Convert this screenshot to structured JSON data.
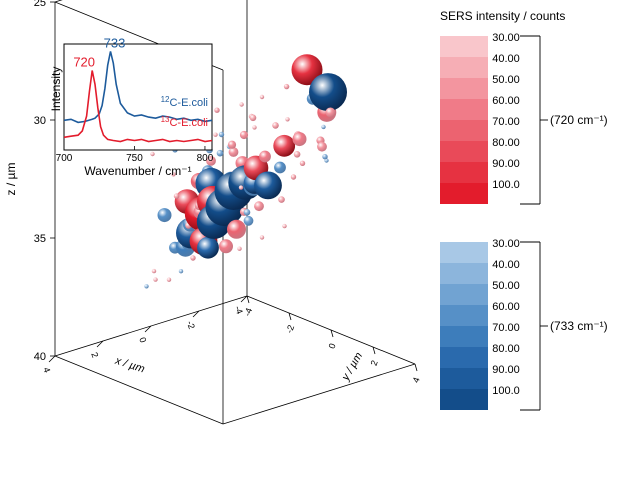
{
  "chart_data": {
    "type": "scatter",
    "subtype": "3d-bubble",
    "axes": {
      "x": {
        "label": "x / µm",
        "ticks": [
          "4",
          "2",
          "0",
          "-2",
          "-4"
        ]
      },
      "y": {
        "label": "y / µm",
        "ticks": [
          "-4",
          "-2",
          "0",
          "2",
          "4"
        ]
      },
      "z": {
        "label": "z / µm",
        "ticks": [
          "25",
          "30",
          "35",
          "40"
        ],
        "range": [
          25,
          40
        ]
      }
    },
    "legend": {
      "title": "SERS intensity / counts",
      "groups": [
        {
          "label": "(720 cm⁻¹)",
          "color_scale": "red",
          "levels": [
            "30.00",
            "40.00",
            "50.00",
            "60.00",
            "70.00",
            "80.00",
            "90.00",
            "100.0"
          ],
          "colors": [
            "#f9c6cb",
            "#f6aeb5",
            "#f3959f",
            "#f07b88",
            "#ec6370",
            "#e94a59",
            "#e63241",
            "#e31c2c"
          ]
        },
        {
          "label": "(733 cm⁻¹)",
          "color_scale": "blue",
          "levels": [
            "30.00",
            "40.00",
            "50.00",
            "60.00",
            "70.00",
            "80.00",
            "90.00",
            "100.0"
          ],
          "colors": [
            "#a8c8e6",
            "#8cb5dc",
            "#71a3d2",
            "#5690c7",
            "#3d7dbb",
            "#2a6aad",
            "#1d5b9c",
            "#134d8a"
          ]
        }
      ]
    },
    "inset": {
      "xlabel": "Wavenumber / cm⁻¹",
      "ylabel": "Intensity",
      "xticks": [
        "700",
        "750",
        "800"
      ],
      "xlim": [
        700,
        805
      ],
      "peak_labels": [
        {
          "text": "720",
          "x": 720,
          "color": "#e31c2c"
        },
        {
          "text": "733",
          "x": 733,
          "color": "#1d5b9c"
        }
      ],
      "series": [
        {
          "name": "12C-E.coli",
          "color": "#1d5b9c",
          "x": [
            700,
            705,
            710,
            715,
            720,
            722,
            725,
            727,
            729,
            731,
            733,
            735,
            737,
            740,
            745,
            750,
            755,
            760,
            765,
            770,
            775,
            780,
            785,
            790,
            795,
            800,
            805
          ],
          "y": [
            0.28,
            0.29,
            0.26,
            0.27,
            0.29,
            0.3,
            0.34,
            0.42,
            0.58,
            0.8,
            0.93,
            0.82,
            0.62,
            0.44,
            0.35,
            0.32,
            0.33,
            0.31,
            0.3,
            0.32,
            0.31,
            0.29,
            0.3,
            0.28,
            0.29,
            0.27,
            0.28
          ]
        },
        {
          "name": "13C-E.coli",
          "color": "#e31c2c",
          "x": [
            700,
            705,
            710,
            713,
            716,
            718,
            720,
            722,
            724,
            726,
            728,
            731,
            735,
            740,
            745,
            750,
            755,
            760,
            765,
            770,
            775,
            780,
            785,
            790,
            795,
            800,
            805
          ],
          "y": [
            0.12,
            0.13,
            0.14,
            0.18,
            0.32,
            0.55,
            0.75,
            0.62,
            0.4,
            0.22,
            0.14,
            0.1,
            0.09,
            0.08,
            0.1,
            0.09,
            0.1,
            0.08,
            0.09,
            0.1,
            0.08,
            0.09,
            0.08,
            0.09,
            0.1,
            0.08,
            0.09
          ]
        }
      ],
      "series_labels": [
        {
          "pre": "12",
          "post": "C-E.coli",
          "color": "#1d5b9c"
        },
        {
          "pre": "13",
          "post": "C-E.coli",
          "color": "#e31c2c"
        }
      ]
    },
    "points": [
      {
        "x": 0.5,
        "y": 4.0,
        "z": 26.1,
        "c": "red",
        "i": 90
      },
      {
        "x": -0.2,
        "y": 4.2,
        "z": 27.2,
        "c": "blue",
        "i": 100
      },
      {
        "x": -0.5,
        "y": 3.8,
        "z": 28.3,
        "c": "red",
        "i": 70
      },
      {
        "x": 0.0,
        "y": 3.7,
        "z": 27.6,
        "c": "blue",
        "i": 55
      },
      {
        "x": -1.0,
        "y": 3.4,
        "z": 28.6,
        "c": "red",
        "i": 50
      },
      {
        "x": 1.0,
        "y": 3.6,
        "z": 26.8,
        "c": "red",
        "i": 35
      },
      {
        "x": 1.5,
        "y": 3.0,
        "z": 27.3,
        "c": "red",
        "i": 30
      },
      {
        "x": 2.0,
        "y": 2.6,
        "z": 27.6,
        "c": "red",
        "i": 30
      },
      {
        "x": 2.5,
        "y": 2.0,
        "z": 27.9,
        "c": "red",
        "i": 35
      },
      {
        "x": 3.0,
        "y": 1.5,
        "z": 28.1,
        "c": "red",
        "i": 30
      },
      {
        "x": 1.5,
        "y": 2.5,
        "z": 28.3,
        "c": "red",
        "i": 35
      },
      {
        "x": 1.0,
        "y": 2.0,
        "z": 28.7,
        "c": "red",
        "i": 40
      },
      {
        "x": 0.5,
        "y": 2.5,
        "z": 29.0,
        "c": "red",
        "i": 40
      },
      {
        "x": 0.0,
        "y": 3.0,
        "z": 29.4,
        "c": "red",
        "i": 45
      },
      {
        "x": -0.5,
        "y": 3.5,
        "z": 29.6,
        "c": "red",
        "i": 45
      },
      {
        "x": 0.3,
        "y": 3.3,
        "z": 30.0,
        "c": "red",
        "i": 40
      },
      {
        "x": -0.5,
        "y": 2.5,
        "z": 29.9,
        "c": "red",
        "i": 60
      },
      {
        "x": -0.3,
        "y": 2.0,
        "z": 30.3,
        "c": "red",
        "i": 75
      },
      {
        "x": -1.0,
        "y": 3.0,
        "z": 30.2,
        "c": "red",
        "i": 50
      },
      {
        "x": 0.5,
        "y": 2.0,
        "z": 30.5,
        "c": "red",
        "i": 55
      },
      {
        "x": 1.0,
        "y": 1.5,
        "z": 30.8,
        "c": "red",
        "i": 60
      },
      {
        "x": 1.5,
        "y": 1.0,
        "z": 30.4,
        "c": "blue",
        "i": 40
      },
      {
        "x": 2.0,
        "y": 0.5,
        "z": 30.0,
        "c": "red",
        "i": 30
      },
      {
        "x": 2.5,
        "y": 0.0,
        "z": 30.3,
        "c": "blue",
        "i": 35
      },
      {
        "x": 3.0,
        "y": -0.5,
        "z": 30.5,
        "c": "red",
        "i": 30
      },
      {
        "x": 2.0,
        "y": 1.0,
        "z": 31.0,
        "c": "blue",
        "i": 55
      },
      {
        "x": 1.5,
        "y": 1.5,
        "z": 31.3,
        "c": "blue",
        "i": 60
      },
      {
        "x": 1.0,
        "y": 2.0,
        "z": 31.6,
        "c": "blue",
        "i": 70
      },
      {
        "x": 0.5,
        "y": 1.5,
        "z": 31.8,
        "c": "blue",
        "i": 75
      },
      {
        "x": 0.0,
        "y": 1.0,
        "z": 31.5,
        "c": "red",
        "i": 80
      },
      {
        "x": 0.0,
        "y": 0.5,
        "z": 32.3,
        "c": "blue",
        "i": 95
      },
      {
        "x": 0.5,
        "y": 0.5,
        "z": 32.5,
        "c": "blue",
        "i": 100
      },
      {
        "x": -0.5,
        "y": 1.0,
        "z": 32.4,
        "c": "blue",
        "i": 85
      },
      {
        "x": 1.0,
        "y": 0.0,
        "z": 32.2,
        "c": "blue",
        "i": 90
      },
      {
        "x": 0.5,
        "y": -0.5,
        "z": 33.3,
        "c": "red",
        "i": 90
      },
      {
        "x": 0.0,
        "y": -0.5,
        "z": 33.7,
        "c": "blue",
        "i": 100
      },
      {
        "x": 0.5,
        "y": -1.0,
        "z": 34.0,
        "c": "red",
        "i": 95
      },
      {
        "x": 0.0,
        "y": -1.0,
        "z": 34.5,
        "c": "blue",
        "i": 95
      },
      {
        "x": -0.5,
        "y": -0.5,
        "z": 34.8,
        "c": "red",
        "i": 70
      },
      {
        "x": 0.5,
        "y": -1.5,
        "z": 35.0,
        "c": "blue",
        "i": 90
      },
      {
        "x": 0.0,
        "y": -1.5,
        "z": 35.5,
        "c": "red",
        "i": 85
      },
      {
        "x": -0.5,
        "y": -1.0,
        "z": 35.7,
        "c": "red",
        "i": 60
      },
      {
        "x": 1.0,
        "y": -1.0,
        "z": 34.3,
        "c": "blue",
        "i": 60
      },
      {
        "x": 1.0,
        "y": -0.5,
        "z": 33.6,
        "c": "red",
        "i": 60
      },
      {
        "x": -1.0,
        "y": 0.0,
        "z": 33.8,
        "c": "red",
        "i": 50
      },
      {
        "x": -1.0,
        "y": -0.5,
        "z": 34.6,
        "c": "blue",
        "i": 50
      },
      {
        "x": -1.5,
        "y": 0.5,
        "z": 33.5,
        "c": "red",
        "i": 40
      },
      {
        "x": 1.5,
        "y": 0.0,
        "z": 33.0,
        "c": "red",
        "i": 45
      },
      {
        "x": 1.5,
        "y": -0.5,
        "z": 34.0,
        "c": "red",
        "i": 40
      },
      {
        "x": -1.0,
        "y": 1.0,
        "z": 31.8,
        "c": "blue",
        "i": 55
      },
      {
        "x": -0.5,
        "y": -2.0,
        "z": 36.0,
        "c": "red",
        "i": 40
      },
      {
        "x": 0.0,
        "y": -2.0,
        "z": 36.4,
        "c": "red",
        "i": 35
      },
      {
        "x": 0.5,
        "y": -2.0,
        "z": 36.8,
        "c": "blue",
        "i": 30
      },
      {
        "x": 1.0,
        "y": -2.0,
        "z": 37.0,
        "c": "red",
        "i": 30
      },
      {
        "x": -1.5,
        "y": -1.5,
        "z": 36.3,
        "c": "red",
        "i": 30
      },
      {
        "x": -2.0,
        "y": -1.0,
        "z": 35.8,
        "c": "red",
        "i": 30
      },
      {
        "x": -2.5,
        "y": -0.5,
        "z": 35.3,
        "c": "red",
        "i": 30
      },
      {
        "x": 1.5,
        "y": -2.5,
        "z": 37.3,
        "c": "blue",
        "i": 30
      },
      {
        "x": 2.0,
        "y": -1.5,
        "z": 36.5,
        "c": "red",
        "i": 30
      },
      {
        "x": 2.5,
        "y": -1.0,
        "z": 35.8,
        "c": "red",
        "i": 30
      },
      {
        "x": -2.0,
        "y": 0.5,
        "z": 32.7,
        "c": "red",
        "i": 35
      },
      {
        "x": -2.5,
        "y": 1.5,
        "z": 31.8,
        "c": "blue",
        "i": 30
      },
      {
        "x": -2.0,
        "y": 2.0,
        "z": 31.3,
        "c": "blue",
        "i": 35
      },
      {
        "x": -1.5,
        "y": 1.5,
        "z": 31.6,
        "c": "red",
        "i": 35
      },
      {
        "x": 3.0,
        "y": 0.5,
        "z": 31.0,
        "c": "red",
        "i": 30
      },
      {
        "x": 2.5,
        "y": 1.5,
        "z": 29.2,
        "c": "red",
        "i": 35
      },
      {
        "x": 3.0,
        "y": 2.5,
        "z": 28.6,
        "c": "red",
        "i": 30
      },
      {
        "x": -3.0,
        "y": -3.0,
        "z": 32.5,
        "c": "red",
        "i": 45
      },
      {
        "x": -2.5,
        "y": -3.5,
        "z": 32.5,
        "c": "blue",
        "i": 35
      },
      {
        "x": -3.0,
        "y": -3.5,
        "z": 33.4,
        "c": "red",
        "i": 50
      },
      {
        "x": -2.5,
        "y": -4.0,
        "z": 33.8,
        "c": "red",
        "i": 50
      },
      {
        "x": -2.0,
        "y": -3.5,
        "z": 33.0,
        "c": "blue",
        "i": 40
      },
      {
        "x": -2.0,
        "y": -4.0,
        "z": 34.5,
        "c": "red",
        "i": 65
      },
      {
        "x": -1.5,
        "y": -4.0,
        "z": 35.2,
        "c": "red",
        "i": 80
      },
      {
        "x": -1.0,
        "y": -4.5,
        "z": 35.8,
        "c": "blue",
        "i": 60
      },
      {
        "x": -2.0,
        "y": -3.0,
        "z": 35.0,
        "c": "red",
        "i": 50
      },
      {
        "x": -1.5,
        "y": -3.5,
        "z": 36.0,
        "c": "red",
        "i": 55
      },
      {
        "x": -2.5,
        "y": -3.0,
        "z": 34.0,
        "c": "red",
        "i": 35
      },
      {
        "x": -3.0,
        "y": -2.5,
        "z": 32.0,
        "c": "red",
        "i": 30
      },
      {
        "x": -1.5,
        "y": -3.0,
        "z": 36.8,
        "c": "blue",
        "i": 75
      },
      {
        "x": -1.0,
        "y": -3.5,
        "z": 36.8,
        "c": "blue",
        "i": 70
      },
      {
        "x": -2.0,
        "y": -4.5,
        "z": 37.3,
        "c": "blue",
        "i": 60
      },
      {
        "x": -1.0,
        "y": -4.0,
        "z": 37.0,
        "c": "blue",
        "i": 55
      },
      {
        "x": 1.5,
        "y": 2.0,
        "z": 31.5,
        "c": "red",
        "i": 30
      },
      {
        "x": 2.0,
        "y": 2.0,
        "z": 29.6,
        "c": "blue",
        "i": 30
      },
      {
        "x": 0.5,
        "y": 1.0,
        "z": 33.2,
        "c": "red",
        "i": 45
      },
      {
        "x": -0.5,
        "y": 0.0,
        "z": 33.9,
        "c": "blue",
        "i": 40
      },
      {
        "x": 0.0,
        "y": 2.5,
        "z": 28.9,
        "c": "red",
        "i": 30
      },
      {
        "x": -1.5,
        "y": 2.5,
        "z": 29.7,
        "c": "blue",
        "i": 30
      },
      {
        "x": 2.0,
        "y": -0.5,
        "z": 32.6,
        "c": "red",
        "i": 35
      },
      {
        "x": 1.0,
        "y": 1.0,
        "z": 30.2,
        "c": "red",
        "i": 45
      }
    ]
  }
}
